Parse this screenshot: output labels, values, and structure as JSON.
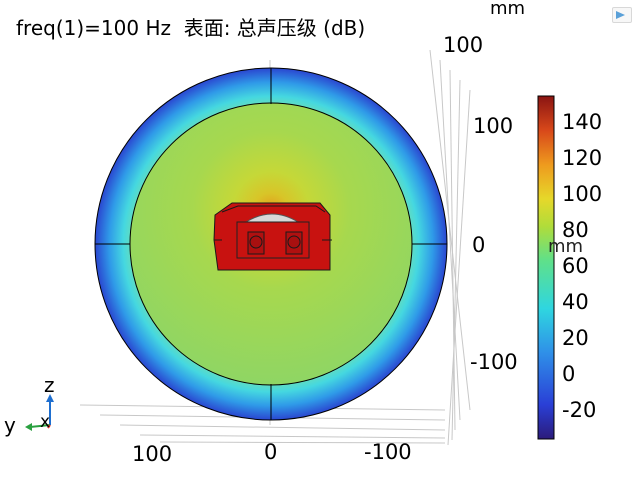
{
  "title": "freq(1)=100 Hz  表面: 总声压级 (dB)",
  "units": {
    "top": "mm",
    "middle": "mm"
  },
  "axis_ticks": {
    "right": [
      "100",
      "100",
      "0",
      "-100"
    ],
    "bottom": [
      "100",
      "0",
      "-100"
    ]
  },
  "triad": {
    "z": "z",
    "y": "y",
    "x": "x"
  },
  "colorbar": {
    "labels": [
      "140",
      "120",
      "100",
      "80",
      "60",
      "40",
      "20",
      "0",
      "-20"
    ],
    "colormap": "rainbow"
  },
  "colors": {
    "sphere_outer": "#2a4fd6",
    "sphere_inner": "#9fd85a",
    "hot_spot": "#e8a81e",
    "device": "#c41210"
  },
  "icons": [
    "app-logo-icon",
    "coordinate-triad-icon"
  ]
}
